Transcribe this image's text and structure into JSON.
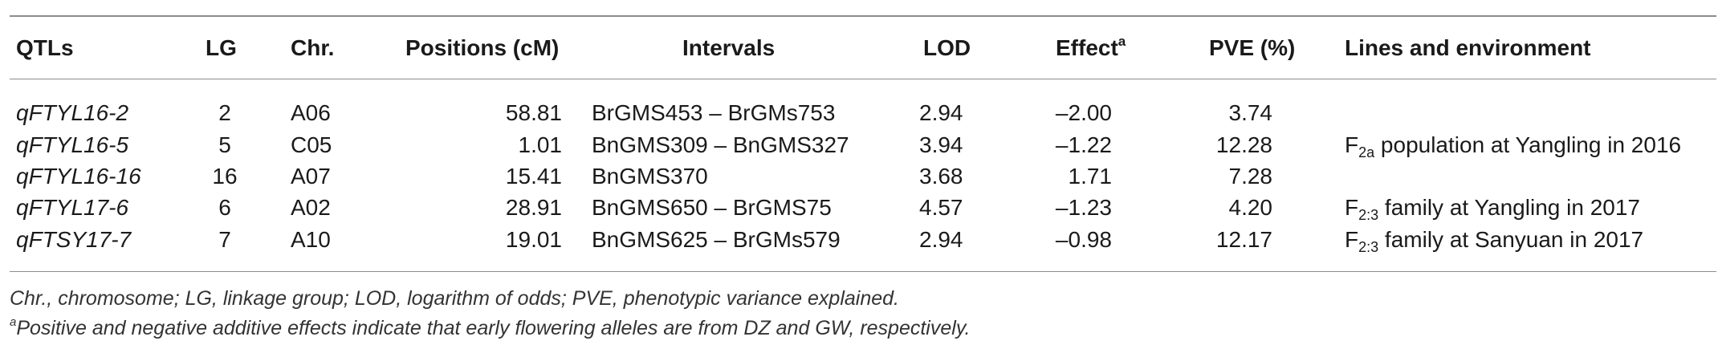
{
  "table": {
    "headers": {
      "qtls": "QTLs",
      "lg": "LG",
      "chr": "Chr.",
      "positions": "Positions (cM)",
      "intervals": "Intervals",
      "lod": "LOD",
      "effect": "Effect",
      "effect_sup": "a",
      "pve": "PVE (%)",
      "lines": "Lines and environment"
    },
    "rows": [
      {
        "qtl": "qFTYL16-2",
        "lg": "2",
        "chr": "A06",
        "pos": "58.81",
        "interval": "BrGMS453 – BrGMs753",
        "lod": "2.94",
        "effect": "–2.00",
        "pve": "3.74"
      },
      {
        "qtl": "qFTYL16-5",
        "lg": "5",
        "chr": "C05",
        "pos": "1.01",
        "interval": "BnGMS309 – BnGMS327",
        "lod": "3.94",
        "effect": "–1.22",
        "pve": "12.28"
      },
      {
        "qtl": "qFTYL16-16",
        "lg": "16",
        "chr": "A07",
        "pos": "15.41",
        "interval": "BnGMS370",
        "lod": "3.68",
        "effect": "1.71",
        "pve": "7.28"
      },
      {
        "qtl": "qFTYL17-6",
        "lg": "6",
        "chr": "A02",
        "pos": "28.91",
        "interval": "BnGMS650 – BrGMS75",
        "lod": "4.57",
        "effect": "–1.23",
        "pve": "4.20"
      },
      {
        "qtl": "qFTSY17-7",
        "lg": "7",
        "chr": "A10",
        "pos": "19.01",
        "interval": "BnGMS625 – BrGMs579",
        "lod": "2.94",
        "effect": "–0.98",
        "pve": "12.17"
      }
    ],
    "environments": [
      {
        "prefix": "F",
        "sub": "2a",
        "text": " population at Yangling in 2016"
      },
      {
        "prefix": "F",
        "sub": "2:3",
        "text": " family at Yangling in 2017"
      },
      {
        "prefix": "F",
        "sub": "2:3",
        "text": " family at Sanyuan in 2017"
      }
    ]
  },
  "footnotes": {
    "abbreviations": "Chr., chromosome; LG, linkage group; LOD, logarithm of odds; PVE, phenotypic variance explained.",
    "note_sup": "a",
    "note": "Positive and negative additive effects indicate that early flowering alleles are from DZ and GW, respectively."
  }
}
